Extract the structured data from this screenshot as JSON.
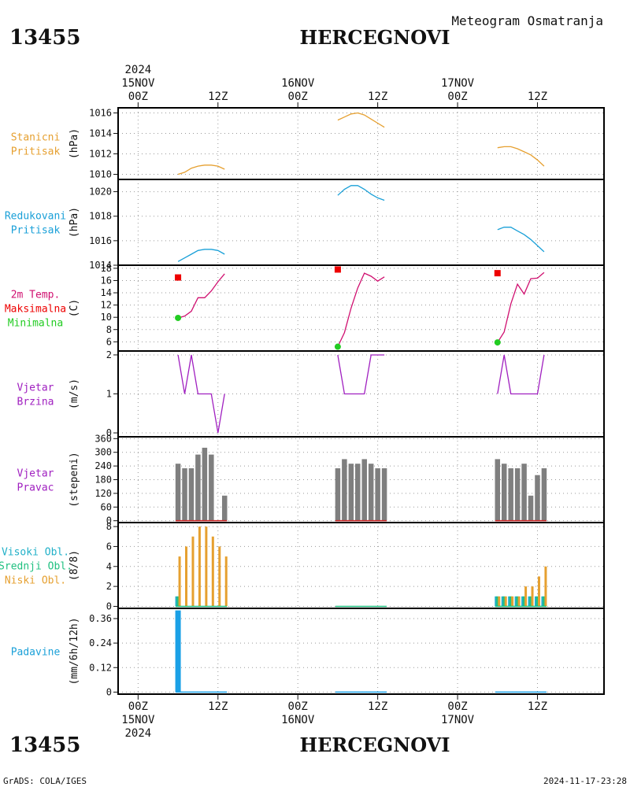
{
  "header": {
    "station_id": "13455",
    "station_name": "HERCEGNOVI",
    "product": "Meteogram Osmatranja"
  },
  "footer": {
    "station_id": "13455",
    "station_name": "HERCEGNOVI",
    "credit": "GrADS: COLA/IGES",
    "timestamp": "2024-11-17-23:28"
  },
  "time_axis": {
    "year": "2024",
    "ticks": [
      {
        "hour": 0,
        "label": "00Z",
        "date": "15NOV"
      },
      {
        "hour": 12,
        "label": "12Z",
        "date": ""
      },
      {
        "hour": 24,
        "label": "00Z",
        "date": "16NOV"
      },
      {
        "hour": 36,
        "label": "12Z",
        "date": ""
      },
      {
        "hour": 48,
        "label": "00Z",
        "date": "17NOV"
      },
      {
        "hour": 60,
        "label": "12Z",
        "date": ""
      }
    ],
    "range_hours": [
      -3,
      70
    ]
  },
  "colors": {
    "station_pressure": "#e6a030",
    "reduced_pressure": "#1aa0d8",
    "temperature": "#d01070",
    "tmax": "#ee0000",
    "tmin": "#22cc22",
    "wind": "#a020c0",
    "wind_dir_bar": "#7f7f7f",
    "wind_dir_base": "#cc2020",
    "cloud_high": "#20b0c8",
    "cloud_mid": "#20c080",
    "cloud_low": "#e6a030",
    "precip": "#1aa0e6",
    "grid": "#999999"
  },
  "chart_data": [
    {
      "type": "line",
      "label_lines": [
        "Stanicni",
        "Pritisak"
      ],
      "label_color": "#e6a030",
      "ylabel": "(hPa)",
      "ylim": [
        1009.5,
        1016.5
      ],
      "yticks": [
        1010,
        1012,
        1014,
        1016
      ],
      "series": [
        {
          "x": [
            6,
            7,
            8,
            9,
            10,
            11,
            12,
            13
          ],
          "y": [
            1010.0,
            1010.2,
            1010.6,
            1010.8,
            1010.9,
            1010.9,
            1010.8,
            1010.5
          ]
        },
        {
          "x": [
            30,
            31,
            32,
            33,
            34,
            35,
            36,
            37
          ],
          "y": [
            1015.3,
            1015.6,
            1015.9,
            1016.0,
            1015.8,
            1015.4,
            1015.0,
            1014.6
          ]
        },
        {
          "x": [
            54,
            55,
            56,
            57,
            58,
            59,
            60,
            61
          ],
          "y": [
            1012.6,
            1012.7,
            1012.7,
            1012.5,
            1012.2,
            1011.9,
            1011.4,
            1010.8
          ]
        }
      ]
    },
    {
      "type": "line",
      "label_lines": [
        "Redukovani",
        "Pritisak"
      ],
      "label_color": "#1aa0d8",
      "ylabel": "(hPa)",
      "ylim": [
        1014,
        1021
      ],
      "yticks": [
        1014,
        1016,
        1018,
        1020
      ],
      "series": [
        {
          "x": [
            6,
            7,
            8,
            9,
            10,
            11,
            12,
            13
          ],
          "y": [
            1014.3,
            1014.6,
            1014.9,
            1015.2,
            1015.3,
            1015.3,
            1015.2,
            1014.9
          ]
        },
        {
          "x": [
            30,
            31,
            32,
            33,
            34,
            35,
            36,
            37
          ],
          "y": [
            1019.7,
            1020.2,
            1020.5,
            1020.5,
            1020.2,
            1019.8,
            1019.5,
            1019.3
          ]
        },
        {
          "x": [
            54,
            55,
            56,
            57,
            58,
            59,
            60,
            61
          ],
          "y": [
            1016.9,
            1017.1,
            1017.1,
            1016.8,
            1016.5,
            1016.1,
            1015.6,
            1015.1
          ]
        }
      ]
    },
    {
      "type": "line",
      "label_lines": [
        "2m Temp.",
        "Maksimalna",
        "Minimalna"
      ],
      "label_colors": [
        "#d01070",
        "#ee0000",
        "#22cc22"
      ],
      "ylabel": "(C)",
      "ylim": [
        4.5,
        18.5
      ],
      "yticks": [
        6,
        8,
        10,
        12,
        14,
        16,
        18
      ],
      "series": [
        {
          "x": [
            6,
            7,
            8,
            9,
            10,
            11,
            12,
            13
          ],
          "y": [
            9.9,
            10.2,
            11.0,
            13.2,
            13.2,
            14.3,
            15.8,
            17.1
          ]
        },
        {
          "x": [
            30,
            31,
            32,
            33,
            34,
            35,
            36,
            37
          ],
          "y": [
            5.2,
            7.5,
            11.5,
            14.8,
            17.2,
            16.7,
            15.9,
            16.6
          ]
        },
        {
          "x": [
            54,
            55,
            56,
            57,
            58,
            59,
            60,
            61
          ],
          "y": [
            5.9,
            7.6,
            12.2,
            15.4,
            13.8,
            16.3,
            16.4,
            17.3
          ]
        }
      ],
      "tmax": {
        "x": [
          6,
          30,
          54
        ],
        "y": [
          16.5,
          17.8,
          17.2
        ]
      },
      "tmin": {
        "x": [
          6,
          30,
          54
        ],
        "y": [
          9.9,
          5.2,
          5.9
        ]
      }
    },
    {
      "type": "line",
      "label_lines": [
        "Vjetar",
        "Brzina"
      ],
      "label_color": "#a020c0",
      "ylabel": "(m/s)",
      "ylim": [
        -0.1,
        2.1
      ],
      "yticks": [
        0,
        1,
        2
      ],
      "series": [
        {
          "x": [
            6,
            7,
            8,
            9,
            10,
            11,
            12,
            13
          ],
          "y": [
            2,
            1,
            2,
            1,
            1,
            1,
            0,
            1
          ]
        },
        {
          "x": [
            30,
            31,
            32,
            33,
            34,
            35,
            36,
            37
          ],
          "y": [
            2,
            1,
            1,
            1,
            1,
            2,
            2,
            2
          ]
        },
        {
          "x": [
            54,
            55,
            56,
            57,
            58,
            59,
            60,
            61
          ],
          "y": [
            1,
            2,
            1,
            1,
            1,
            1,
            1,
            2
          ]
        }
      ]
    },
    {
      "type": "bar",
      "label_lines": [
        "Vjetar",
        "Pravac"
      ],
      "label_color": "#a020c0",
      "ylabel": "(stepeni)",
      "ylim": [
        -8,
        368
      ],
      "yticks": [
        0,
        60,
        120,
        180,
        240,
        300,
        360
      ],
      "x": [
        6,
        7,
        8,
        9,
        10,
        11,
        12,
        13,
        30,
        31,
        32,
        33,
        34,
        35,
        36,
        37,
        54,
        55,
        56,
        57,
        58,
        59,
        60,
        61
      ],
      "values": [
        250,
        230,
        230,
        290,
        320,
        290,
        0,
        110,
        230,
        270,
        250,
        250,
        270,
        250,
        230,
        230,
        270,
        250,
        230,
        230,
        250,
        110,
        200,
        230
      ]
    },
    {
      "type": "bar",
      "label_lines": [
        "Visoki Obl.",
        "Srednji Obl.",
        "Niski Obl."
      ],
      "label_colors": [
        "#20b0c8",
        "#20c080",
        "#e6a030"
      ],
      "ylabel": "(8/8)",
      "ylim": [
        -0.2,
        8.4
      ],
      "yticks": [
        0,
        2,
        4,
        6,
        8
      ],
      "x": [
        6,
        7,
        8,
        9,
        10,
        11,
        12,
        13,
        30,
        31,
        32,
        33,
        34,
        35,
        36,
        37,
        54,
        55,
        56,
        57,
        58,
        59,
        60,
        61
      ],
      "series": [
        {
          "name": "Visoki Obl.",
          "values": [
            1,
            0,
            0,
            0,
            0,
            0,
            0,
            0,
            0,
            0,
            0,
            0,
            0,
            0,
            0,
            0,
            1,
            1,
            1,
            1,
            1,
            1,
            1,
            1
          ]
        },
        {
          "name": "Srednji Obl.",
          "values": [
            1,
            0,
            0,
            0,
            0,
            0,
            0,
            0,
            0,
            0,
            0,
            0,
            0,
            0,
            0,
            0,
            1,
            1,
            1,
            1,
            1,
            1,
            1,
            1
          ]
        },
        {
          "name": "Niski Obl.",
          "values": [
            5,
            6,
            7,
            8,
            8,
            7,
            6,
            5,
            0,
            0,
            0,
            0,
            0,
            0,
            0,
            0,
            1,
            1,
            1,
            1,
            2,
            2,
            3,
            4
          ]
        }
      ]
    },
    {
      "type": "bar",
      "label_lines": [
        "Padavine"
      ],
      "label_color": "#1aa0d8",
      "ylabel": "(mm/6h/12h)",
      "ylim": [
        -0.01,
        0.41
      ],
      "yticks": [
        0,
        0.12,
        0.24,
        0.36
      ],
      "ytick_labels": [
        "0",
        "0.12",
        "0.24",
        "0.36"
      ],
      "x": [
        6,
        30,
        54
      ],
      "values": [
        0.4,
        0,
        0
      ]
    }
  ]
}
